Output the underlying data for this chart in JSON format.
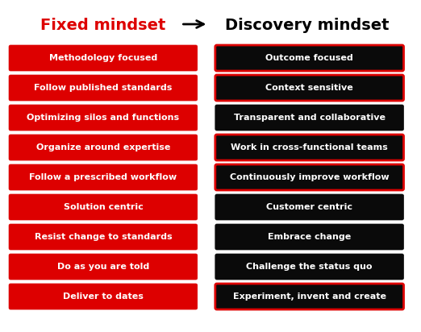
{
  "title_left": "Fixed mindset",
  "title_right": "Discovery mindset",
  "title_left_color": "#dd0000",
  "title_right_color": "#000000",
  "arrow_color": "#000000",
  "left_items": [
    "Methodology focused",
    "Follow published standards",
    "Optimizing silos and functions",
    "Organize around expertise",
    "Follow a prescribed workflow",
    "Solution centric",
    "Resist change to standards",
    "Do as you are told",
    "Deliver to dates"
  ],
  "right_items": [
    "Outcome focused",
    "Context sensitive",
    "Transparent and collaborative",
    "Work in cross-functional teams",
    "Continuously improve workflow",
    "Customer centric",
    "Embrace change",
    "Challenge the status quo",
    "Experiment, invent and create"
  ],
  "right_highlighted": [
    0,
    1,
    3,
    4,
    8
  ],
  "left_box_facecolor": "#dd0000",
  "left_box_edgecolor": "#dd0000",
  "right_box_facecolor": "#0a0a0a",
  "right_box_edgecolor": "#0a0a0a",
  "left_text_color": "#ffffff",
  "right_text_color": "#ffffff",
  "highlight_border_color": "#dd0000",
  "background_color": "#ffffff",
  "title_fontsize": 14,
  "item_fontsize": 8,
  "fig_width": 5.22,
  "fig_height": 4.12,
  "dpi": 100
}
